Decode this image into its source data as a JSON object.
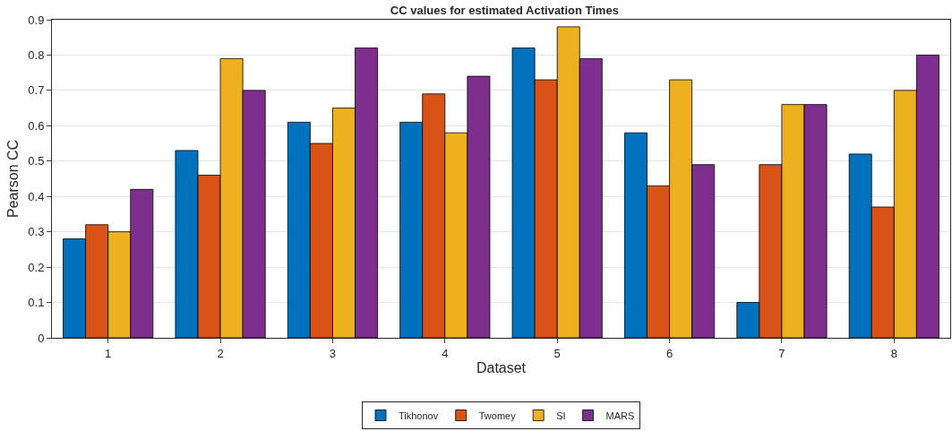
{
  "chart_data": {
    "type": "bar",
    "title": "CC values for estimated Activation Times",
    "xlabel": "Dataset",
    "ylabel": "Pearson CC",
    "categories": [
      "1",
      "2",
      "3",
      "4",
      "5",
      "6",
      "7",
      "8"
    ],
    "series": [
      {
        "name": "Tikhonov",
        "color": "#0072bd",
        "values": [
          0.28,
          0.53,
          0.61,
          0.61,
          0.82,
          0.58,
          0.1,
          0.52
        ]
      },
      {
        "name": "Twomey",
        "color": "#d95319",
        "values": [
          0.32,
          0.46,
          0.55,
          0.69,
          0.73,
          0.43,
          0.49,
          0.37
        ]
      },
      {
        "name": "SI",
        "color": "#edb120",
        "values": [
          0.3,
          0.79,
          0.65,
          0.58,
          0.88,
          0.73,
          0.66,
          0.7
        ]
      },
      {
        "name": "MARS",
        "color": "#7e2f8e",
        "values": [
          0.42,
          0.7,
          0.82,
          0.74,
          0.79,
          0.49,
          0.66,
          0.8
        ]
      }
    ],
    "ylim": [
      0,
      0.9
    ],
    "yticks": [
      0,
      0.1,
      0.2,
      0.3,
      0.4,
      0.5,
      0.6,
      0.7,
      0.8,
      0.9
    ],
    "grid": "y",
    "legend": "bottom"
  }
}
